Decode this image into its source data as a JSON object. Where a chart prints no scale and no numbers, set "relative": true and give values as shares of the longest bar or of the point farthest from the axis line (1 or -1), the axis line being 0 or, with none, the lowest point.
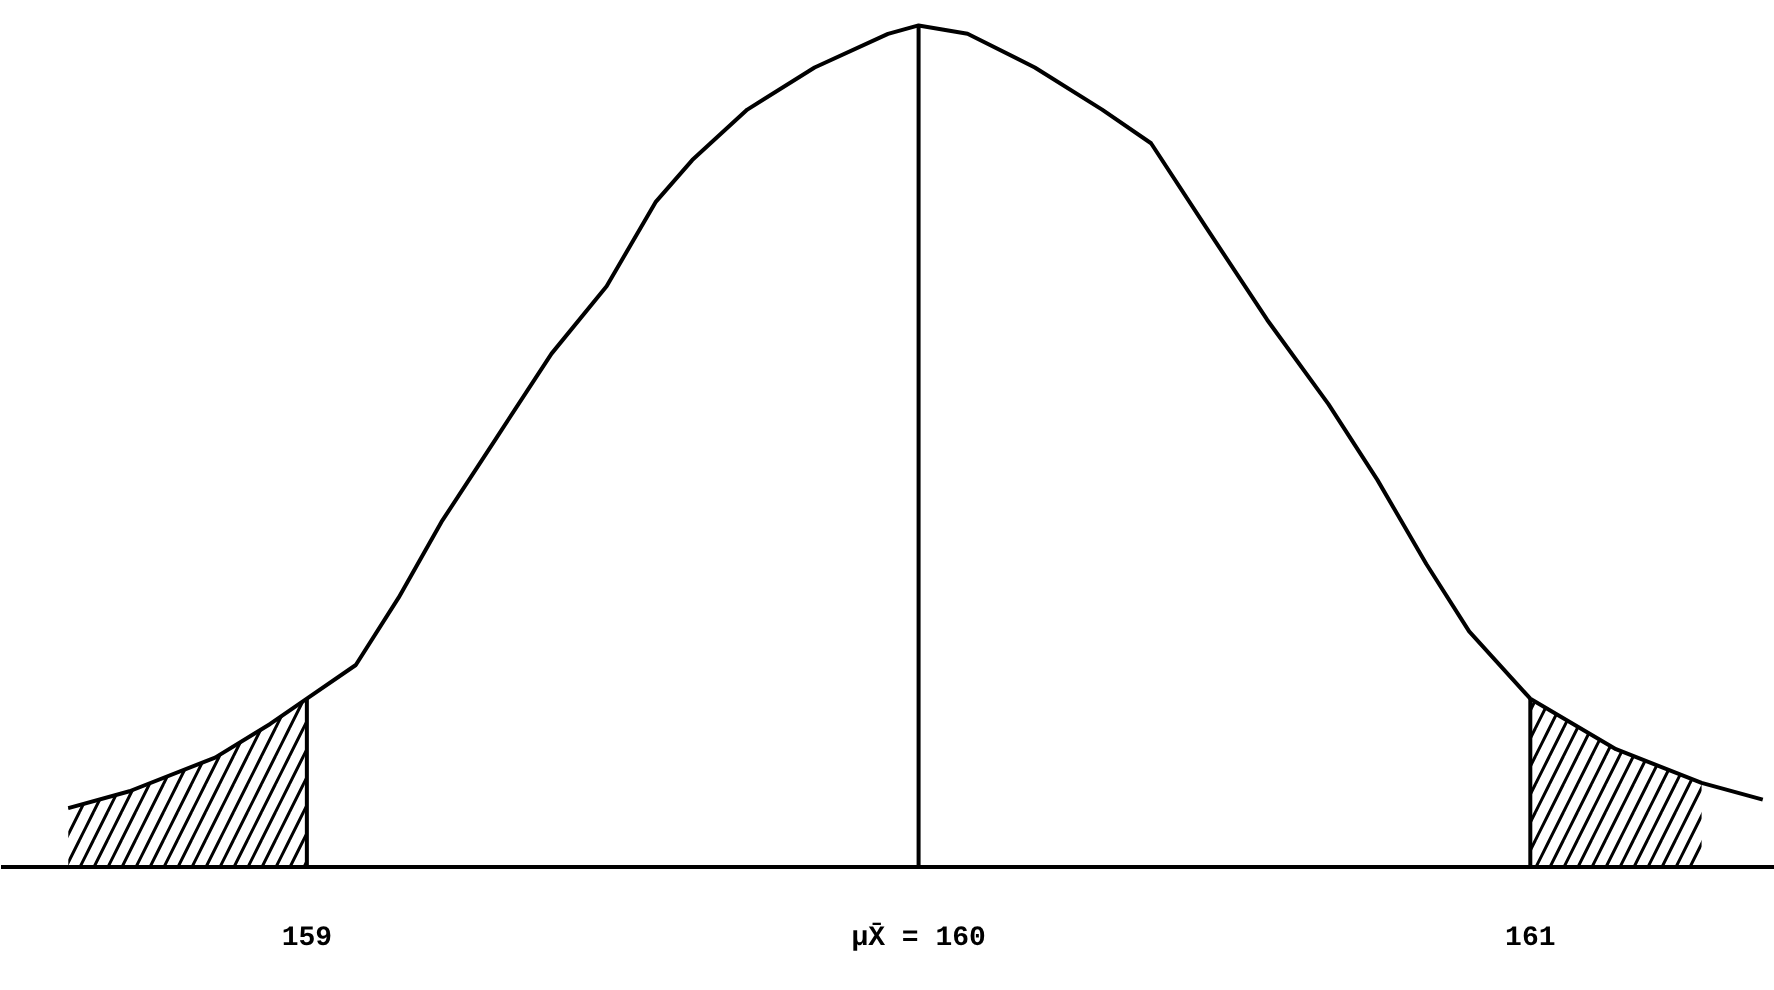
{
  "chart_data": {
    "type": "line",
    "relative": true,
    "x": [
      158.61,
      158.71,
      158.85,
      158.94,
      159.0,
      159.08,
      159.15,
      159.22,
      159.31,
      159.4,
      159.49,
      159.57,
      159.63,
      159.72,
      159.83,
      159.95,
      160.0,
      160.08,
      160.19,
      160.3,
      160.38,
      160.47,
      160.57,
      160.67,
      160.75,
      160.83,
      160.9,
      161.0,
      161.14,
      161.28,
      161.38
    ],
    "series": [
      {
        "color": "#000000",
        "values": [
          0.07,
          0.09,
          0.13,
          0.17,
          0.2,
          0.24,
          0.32,
          0.41,
          0.51,
          0.61,
          0.69,
          0.79,
          0.84,
          0.9,
          0.95,
          0.99,
          1,
          0.99,
          0.95,
          0.9,
          0.86,
          0.76,
          0.65,
          0.55,
          0.46,
          0.36,
          0.28,
          0.2,
          0.14,
          0.1,
          0.08
        ]
      },
      {
        "type": "area",
        "color": "#000000",
        "x": [
          158.61,
          158.71,
          158.85,
          158.94,
          159.0
        ],
        "values": [
          0.07,
          0.09,
          0.13,
          0.17,
          0.2
        ]
      },
      {
        "type": "area",
        "color": "#000000",
        "x": [
          161.0,
          161.14,
          161.28
        ],
        "values": [
          0.2,
          0.14,
          0.1
        ]
      }
    ],
    "xlim": [
      158.5,
      161.4
    ],
    "xticks": [
      159,
      {
        "value": 160,
        "label": "μX̄ = 160"
      },
      161
    ],
    "ref_lines": [
      {
        "axis": "x",
        "value": 159,
        "color": "#000000"
      },
      {
        "axis": "x",
        "value": 160,
        "color": "#000000"
      },
      {
        "axis": "x",
        "value": 161,
        "color": "#000000"
      }
    ],
    "line_style": "solid"
  }
}
